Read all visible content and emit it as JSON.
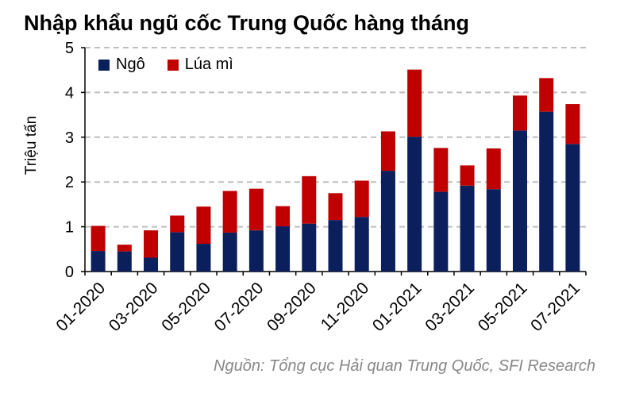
{
  "title": "Nhập khẩu ngũ cốc Trung Quốc hàng tháng",
  "source": "Nguồn: Tổng cục Hải quan Trung Quốc, SFI Research",
  "colors": {
    "corn": "#0b1f5c",
    "wheat": "#c00000",
    "grid": "#bfbfbf"
  },
  "chart_data": {
    "type": "bar",
    "stacked": true,
    "ylabel": "Triệu tấn",
    "xlabel": "",
    "ylim": [
      0,
      5
    ],
    "yticks": [
      0,
      1,
      2,
      3,
      4,
      5
    ],
    "grid": true,
    "legend_position": "top-left",
    "categories": [
      "01-2020",
      "02-2020",
      "03-2020",
      "04-2020",
      "05-2020",
      "06-2020",
      "07-2020",
      "08-2020",
      "09-2020",
      "10-2020",
      "11-2020",
      "12-2020",
      "01-2021",
      "02-2021",
      "03-2021",
      "04-2021",
      "05-2021",
      "06-2021",
      "07-2021"
    ],
    "tick_labels": [
      "01-2020",
      "03-2020",
      "05-2020",
      "07-2020",
      "09-2020",
      "11-2020",
      "01-2021",
      "03-2021",
      "05-2021",
      "07-2021"
    ],
    "series": [
      {
        "name": "Ngô",
        "color": "#0b1f5c",
        "values": [
          0.46,
          0.45,
          0.31,
          0.88,
          0.62,
          0.87,
          0.92,
          1.01,
          1.07,
          1.15,
          1.22,
          2.25,
          3.01,
          1.78,
          1.92,
          1.84,
          3.15,
          3.57,
          2.85
        ]
      },
      {
        "name": "Lúa mì",
        "color": "#c00000",
        "values": [
          0.56,
          0.15,
          0.61,
          0.37,
          0.83,
          0.93,
          0.93,
          0.45,
          1.06,
          0.6,
          0.81,
          0.88,
          1.5,
          0.98,
          0.45,
          0.91,
          0.78,
          0.75,
          0.89
        ]
      }
    ]
  }
}
